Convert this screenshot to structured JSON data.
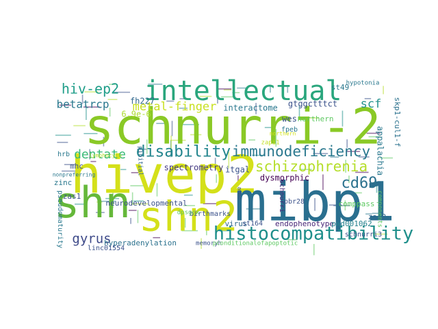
{
  "cloud": {
    "words": [
      {
        "text": "schnurri-2",
        "color": "#8ac926"
      },
      {
        "text": "hivep2",
        "color": "#d4e01a"
      },
      {
        "text": "mibp1",
        "color": "#2a6f8f"
      },
      {
        "text": "shn2",
        "color": "#d4e01a"
      },
      {
        "text": "shn",
        "color": "#65b83a"
      },
      {
        "text": "intellectual",
        "color": "#2aa67d"
      },
      {
        "text": "histocompatibility",
        "color": "#1f8f8b"
      },
      {
        "text": "immunodeficiency",
        "color": "#2a788e"
      },
      {
        "text": "schizophrenia",
        "color": "#b5de2b"
      },
      {
        "text": "disability",
        "color": "#24868e"
      },
      {
        "text": "hiv-ep2",
        "color": "#1f9e89"
      },
      {
        "text": "cd69",
        "color": "#2c728e"
      },
      {
        "text": "metal-finger",
        "color": "#c8e020"
      },
      {
        "text": "dentate",
        "color": "#38b977"
      },
      {
        "text": "betatrcp",
        "color": "#2a788e"
      },
      {
        "text": "gyrus",
        "color": "#3e4a89"
      },
      {
        "text": "scf",
        "color": "#21918c"
      },
      {
        "text": "appalachia",
        "color": "#2a788e"
      },
      {
        "text": "fh227",
        "color": "#31688e"
      },
      {
        "text": "6.9e-6",
        "color": "#addc30"
      },
      {
        "text": "interactome",
        "color": "#2a788e"
      },
      {
        "text": "gtggctttct",
        "color": "#3b528b"
      },
      {
        "text": "spectrometry",
        "color": "#443983"
      },
      {
        "text": "neurodevelopmental",
        "color": "#3b528b"
      },
      {
        "text": "endophenotype",
        "color": "#482677"
      },
      {
        "text": "hyperadenylation",
        "color": "#2c728e"
      },
      {
        "text": "pxd001062",
        "color": "#26828e"
      },
      {
        "text": "st49",
        "color": "#2a788e"
      },
      {
        "text": "northern",
        "color": "#5ec962"
      },
      {
        "text": "wes",
        "color": "#3b528b"
      },
      {
        "text": "fpeb",
        "color": "#2a788e"
      },
      {
        "text": "skp1-cul1-f",
        "color": "#2c728e"
      },
      {
        "text": "itgal",
        "color": "#3b528b"
      },
      {
        "text": "dysmorphic",
        "color": "#440154"
      },
      {
        "text": "comppass",
        "color": "#5ec962"
      },
      {
        "text": "zas2",
        "color": "#31688e"
      },
      {
        "text": "zas1",
        "color": "#3b528b"
      },
      {
        "text": "zinc",
        "color": "#2a788e"
      },
      {
        "text": "mhc",
        "color": "#3b528b"
      },
      {
        "text": "hrb",
        "color": "#2a788e"
      },
      {
        "text": "virus",
        "color": "#31688e"
      },
      {
        "text": "birthmarks",
        "color": "#3b528b"
      },
      {
        "text": "pinitial",
        "color": "#31688e"
      },
      {
        "text": "st164",
        "color": "#3b528b"
      },
      {
        "text": "pbr28",
        "color": "#3b528b"
      },
      {
        "text": "schnurri",
        "color": "#482677"
      },
      {
        "text": "schnurri3",
        "color": "#3b528b"
      },
      {
        "text": "components",
        "color": "#5ec962"
      },
      {
        "text": "linc01554",
        "color": "#3b528b"
      },
      {
        "text": "memoryh",
        "color": "#3b528b"
      },
      {
        "text": "pconditionalofapoptotic",
        "color": "#5ec962"
      },
      {
        "text": "pseudomaturity",
        "color": "#2a788e"
      },
      {
        "text": "dpsgcx",
        "color": "#5ec962"
      },
      {
        "text": "hypotonia",
        "color": "#2a788e"
      },
      {
        "text": "zapi1",
        "color": "#c2df23"
      },
      {
        "text": "northern",
        "color": "#d2e21b"
      },
      {
        "text": "ammo",
        "color": "#3b528b"
      },
      {
        "text": "lymphocyte",
        "color": "#b5de2b"
      },
      {
        "text": "nonpreferring",
        "color": "#2a788e"
      }
    ]
  }
}
